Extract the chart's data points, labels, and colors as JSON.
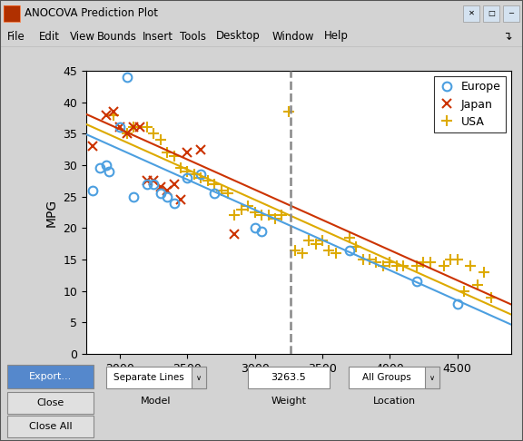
{
  "title": "ANOCOVA Prediction Plot",
  "ylabel": "MPG",
  "xlim": [
    1750,
    4900
  ],
  "ylim": [
    0,
    45
  ],
  "xticks": [
    2000,
    2500,
    3000,
    3500,
    4000,
    4500
  ],
  "yticks": [
    0,
    5,
    10,
    15,
    20,
    25,
    30,
    35,
    40,
    45
  ],
  "vline_x": 3263.5,
  "europe_color": "#4C9FE0",
  "japan_color": "#CC3300",
  "usa_color": "#DDAA00",
  "europe_points": [
    [
      1800,
      26
    ],
    [
      1850,
      29.5
    ],
    [
      1900,
      30
    ],
    [
      1920,
      29
    ],
    [
      2000,
      36
    ],
    [
      2050,
      44
    ],
    [
      2100,
      25
    ],
    [
      2200,
      27
    ],
    [
      2250,
      27
    ],
    [
      2300,
      25.5
    ],
    [
      2350,
      25
    ],
    [
      2400,
      24
    ],
    [
      2500,
      28
    ],
    [
      2600,
      28.5
    ],
    [
      2700,
      25.5
    ],
    [
      3000,
      20
    ],
    [
      3050,
      19.5
    ],
    [
      3700,
      16.5
    ],
    [
      4200,
      11.5
    ],
    [
      4500,
      8
    ]
  ],
  "japan_points": [
    [
      1800,
      33
    ],
    [
      1900,
      38
    ],
    [
      1950,
      38.5
    ],
    [
      2000,
      36
    ],
    [
      2050,
      35
    ],
    [
      2100,
      36
    ],
    [
      2150,
      36
    ],
    [
      2200,
      27.5
    ],
    [
      2250,
      27.5
    ],
    [
      2300,
      26.5
    ],
    [
      2350,
      26
    ],
    [
      2400,
      27
    ],
    [
      2450,
      24.5
    ],
    [
      2500,
      32
    ],
    [
      2600,
      32.5
    ],
    [
      2850,
      19
    ]
  ],
  "usa_points": [
    [
      1950,
      38
    ],
    [
      2050,
      35
    ],
    [
      2100,
      36
    ],
    [
      2200,
      36
    ],
    [
      2250,
      35
    ],
    [
      2300,
      34
    ],
    [
      2350,
      32
    ],
    [
      2400,
      31.5
    ],
    [
      2450,
      29.5
    ],
    [
      2500,
      29
    ],
    [
      2550,
      28.5
    ],
    [
      2600,
      28
    ],
    [
      2650,
      27.5
    ],
    [
      2700,
      27
    ],
    [
      2750,
      26
    ],
    [
      2800,
      25.5
    ],
    [
      2850,
      22
    ],
    [
      2900,
      23
    ],
    [
      2950,
      23.5
    ],
    [
      3000,
      22.5
    ],
    [
      3050,
      22
    ],
    [
      3100,
      22
    ],
    [
      3150,
      21.5
    ],
    [
      3200,
      22
    ],
    [
      3300,
      16.5
    ],
    [
      3350,
      16
    ],
    [
      3400,
      18
    ],
    [
      3450,
      17.5
    ],
    [
      3500,
      18
    ],
    [
      3550,
      16.5
    ],
    [
      3600,
      16
    ],
    [
      3700,
      18.5
    ],
    [
      3750,
      17
    ],
    [
      3800,
      15
    ],
    [
      3850,
      15
    ],
    [
      3900,
      14.5
    ],
    [
      3950,
      14
    ],
    [
      4000,
      14.5
    ],
    [
      4050,
      14
    ],
    [
      4100,
      14
    ],
    [
      4200,
      14
    ],
    [
      4250,
      14.5
    ],
    [
      4300,
      14.5
    ],
    [
      4400,
      14
    ],
    [
      4450,
      15
    ],
    [
      4500,
      15
    ],
    [
      4550,
      10
    ],
    [
      4600,
      14
    ],
    [
      4650,
      11
    ],
    [
      4700,
      13
    ],
    [
      4750,
      9
    ],
    [
      3250,
      38.5
    ]
  ],
  "window_bg": "#D3D3D3",
  "plot_area_bg": "#F0F0F0",
  "plot_bg": "#FFFFFF",
  "titlebar_bg": "#C8D8E8",
  "menubar_bg": "#F5F5F5",
  "slope": -0.0096,
  "europe_intercept": 51.7,
  "japan_intercept": 54.9,
  "usa_intercept": 53.3
}
